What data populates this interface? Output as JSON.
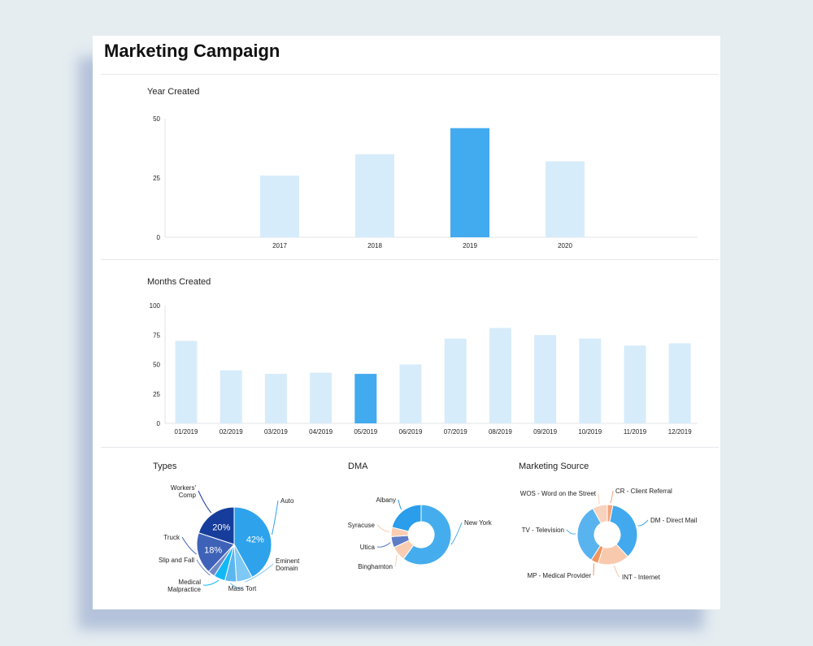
{
  "header": {
    "title": "Marketing Campaign"
  },
  "colors": {
    "bar": "#d7ecfa",
    "highlight": "#42aaee"
  },
  "chart_data": [
    {
      "type": "bar",
      "title": "Year Created",
      "categories": [
        "2017",
        "2018",
        "2019",
        "2020"
      ],
      "values": [
        26,
        35,
        46,
        32
      ],
      "highlight": "2019",
      "yticks": [
        "0",
        "25",
        "50"
      ],
      "ylim": [
        0,
        50
      ]
    },
    {
      "type": "bar",
      "title": "Months Created",
      "categories": [
        "01/2019",
        "02/2019",
        "03/2019",
        "04/2019",
        "05/2019",
        "06/2019",
        "07/2019",
        "08/2019",
        "09/2019",
        "10/2019",
        "11/2019",
        "12/2019"
      ],
      "values": [
        70,
        45,
        42,
        43,
        42,
        50,
        72,
        81,
        75,
        72,
        66,
        68
      ],
      "highlight": "05/2019",
      "yticks": [
        "0",
        "25",
        "50",
        "75",
        "100"
      ],
      "ylim": [
        0,
        100
      ]
    },
    {
      "type": "pie",
      "title": "Types",
      "slices": [
        {
          "label": "Auto",
          "value": 42,
          "color": "#2ea3ec",
          "pct": "42%"
        },
        {
          "label": "Eminent Domain",
          "value": 7,
          "color": "#7dc8f5"
        },
        {
          "label": "Mass Tort",
          "value": 5,
          "color": "#5cb6f0"
        },
        {
          "label": "Medical Malpractice",
          "value": 5,
          "color": "#12b8f5"
        },
        {
          "label": "Slip and Fall",
          "value": 3,
          "color": "#6f88c6"
        },
        {
          "label": "Truck",
          "value": 18,
          "color": "#3e62b8",
          "pct": "18%"
        },
        {
          "label": "Workers' Comp",
          "value": 20,
          "color": "#163d9c",
          "pct": "20%"
        }
      ]
    },
    {
      "type": "donut",
      "title": "DMA",
      "slices": [
        {
          "label": "New York",
          "value": 60,
          "color": "#45adee"
        },
        {
          "label": "Binghamton",
          "value": 8,
          "color": "#f8cdb2"
        },
        {
          "label": "Utica",
          "value": 6,
          "color": "#5d7ec6"
        },
        {
          "label": "Syracuse",
          "value": 5,
          "color": "#f8cdb2"
        },
        {
          "label": "Albany",
          "value": 21,
          "color": "#2a9deb"
        }
      ]
    },
    {
      "type": "donut",
      "title": "Marketing Source",
      "slices": [
        {
          "label": "CR - Client Referral",
          "value": 3,
          "color": "#f4a57d"
        },
        {
          "label": "DM - Direct Mail",
          "value": 35,
          "color": "#42a9ee"
        },
        {
          "label": "INT - Internet",
          "value": 17,
          "color": "#f8c9ac"
        },
        {
          "label": "MP - Medical Provider",
          "value": 4,
          "color": "#f2955f"
        },
        {
          "label": "TV - Television",
          "value": 33,
          "color": "#59b3ef"
        },
        {
          "label": "WOS - Word on the Street",
          "value": 8,
          "color": "#f9d2bd"
        }
      ]
    }
  ]
}
